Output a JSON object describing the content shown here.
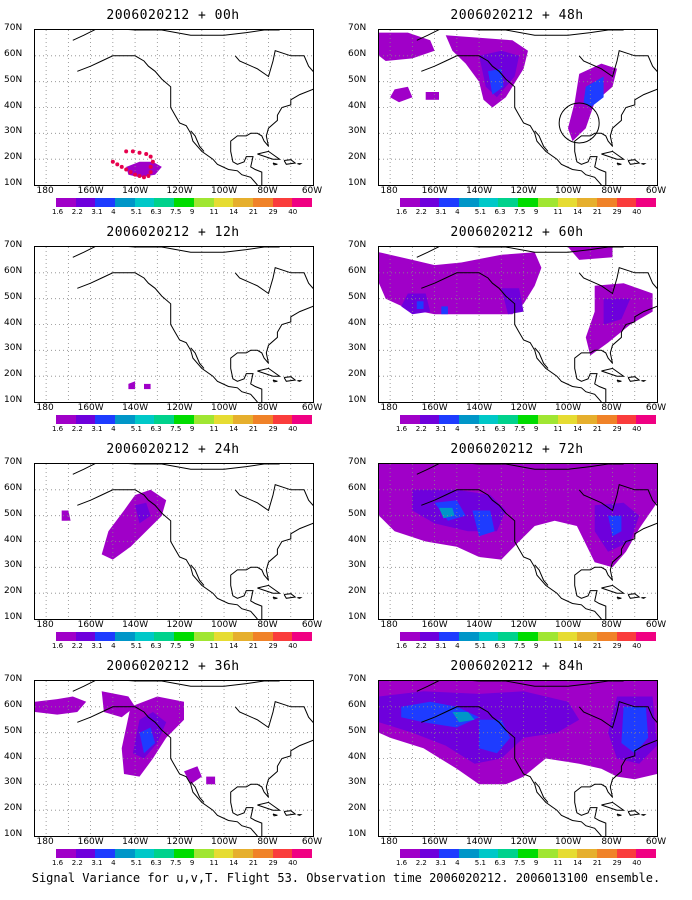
{
  "caption": "Signal Variance for u,v,T. Flight 53. Observation time 2006020212. 2006013100 ensemble.",
  "y_ticks": [
    "70N",
    "60N",
    "50N",
    "40N",
    "30N",
    "20N",
    "10N"
  ],
  "x_ticks": [
    "180",
    "160W",
    "140W",
    "120W",
    "100W",
    "80W",
    "60W"
  ],
  "colorbar_levels": [
    "1.6",
    "2.2",
    "3.1",
    "4",
    "5.1",
    "6.3",
    "7.5",
    "9",
    "11",
    "14",
    "21",
    "29",
    "40"
  ],
  "colorbar_colors": [
    "#a000c8",
    "#6e00dc",
    "#1e3cff",
    "#0096c8",
    "#00c8c8",
    "#00d28c",
    "#00dc00",
    "#a0e632",
    "#e6dc32",
    "#e6af2d",
    "#f08228",
    "#fa3c3c",
    "#f00082"
  ],
  "contour_colors": {
    "c1": "#a000c8",
    "c2": "#6e00dc",
    "c3": "#1e3cff",
    "c4": "#0096c8",
    "c5": "#00c8c8"
  },
  "panels": [
    {
      "title": "2006020212 + 00h"
    },
    {
      "title": "2006020212 + 48h"
    },
    {
      "title": "2006020212 + 12h"
    },
    {
      "title": "2006020212 + 60h"
    },
    {
      "title": "2006020212 + 24h"
    },
    {
      "title": "2006020212 + 72h"
    },
    {
      "title": "2006020212 + 36h"
    },
    {
      "title": "2006020212 + 84h"
    }
  ]
}
